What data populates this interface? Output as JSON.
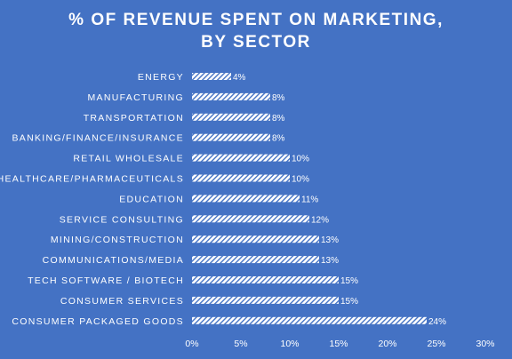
{
  "chart_data": {
    "type": "bar",
    "orientation": "horizontal",
    "title_lines": [
      "% OF REVENUE SPENT ON MARKETING,",
      "BY SECTOR"
    ],
    "categories": [
      "ENERGY",
      "MANUFACTURING",
      "TRANSPORTATION",
      "BANKING/FINANCE/INSURANCE",
      "RETAIL WHOLESALE",
      "HEALTHCARE/PHARMACEUTICALS",
      "EDUCATION",
      "SERVICE CONSULTING",
      "MINING/CONSTRUCTION",
      "COMMUNICATIONS/MEDIA",
      "TECH SOFTWARE / BIOTECH",
      "CONSUMER SERVICES",
      "CONSUMER PACKAGED GOODS"
    ],
    "values": [
      4,
      8,
      8,
      8,
      10,
      10,
      11,
      12,
      13,
      13,
      15,
      15,
      24
    ],
    "data_labels": [
      "4%",
      "8%",
      "8%",
      "8%",
      "10%",
      "10%",
      "11%",
      "12%",
      "13%",
      "13%",
      "15%",
      "15%",
      "24%"
    ],
    "x_ticks": [
      0,
      5,
      10,
      15,
      20,
      25,
      30
    ],
    "x_tick_labels": [
      "0%",
      "5%",
      "10%",
      "15%",
      "20%",
      "25%",
      "30%"
    ],
    "xlim": [
      0,
      30
    ],
    "xlabel": "",
    "ylabel": "",
    "grid": false,
    "legend": "none",
    "colors": {
      "background": "#4472c4",
      "bar_fill": "#ffffff",
      "bar_hatch": "#4472c4",
      "text": "#ffffff"
    },
    "bar_pattern": "diagonal-hatch"
  }
}
